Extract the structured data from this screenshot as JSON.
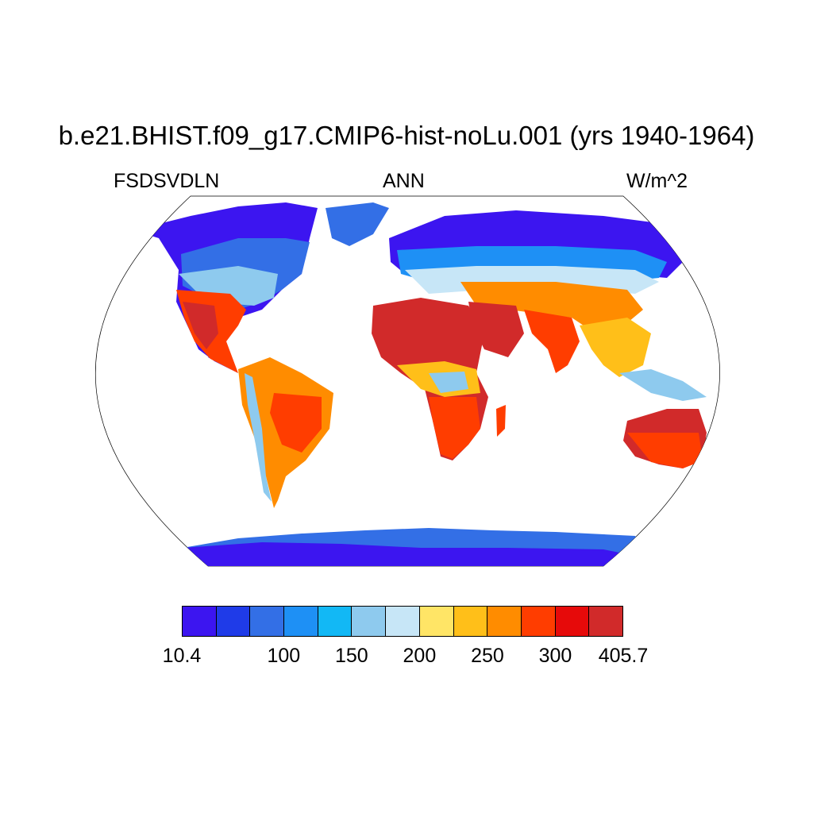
{
  "title": "b.e21.BHIST.f09_g17.CMIP6-hist-noLu.001 (yrs 1940-1964)",
  "left_label": "FSDSVDLN",
  "center_label": "ANN",
  "right_label": "W/m^2",
  "colorbar": {
    "colors": [
      "#3c15f0",
      "#1f3be8",
      "#336fe6",
      "#1e90f5",
      "#12b8f5",
      "#8ecaee",
      "#c7e6f7",
      "#ffe566",
      "#ffbf19",
      "#ff8c00",
      "#ff3d00",
      "#e60a0a",
      "#d12a2a"
    ],
    "labels": [
      {
        "text": "10.4",
        "edge": 0
      },
      {
        "text": "100",
        "edge": 3
      },
      {
        "text": "150",
        "edge": 5
      },
      {
        "text": "200",
        "edge": 7
      },
      {
        "text": "250",
        "edge": 9
      },
      {
        "text": "300",
        "edge": 11
      },
      {
        "text": "405.7",
        "edge": 13
      }
    ]
  }
}
